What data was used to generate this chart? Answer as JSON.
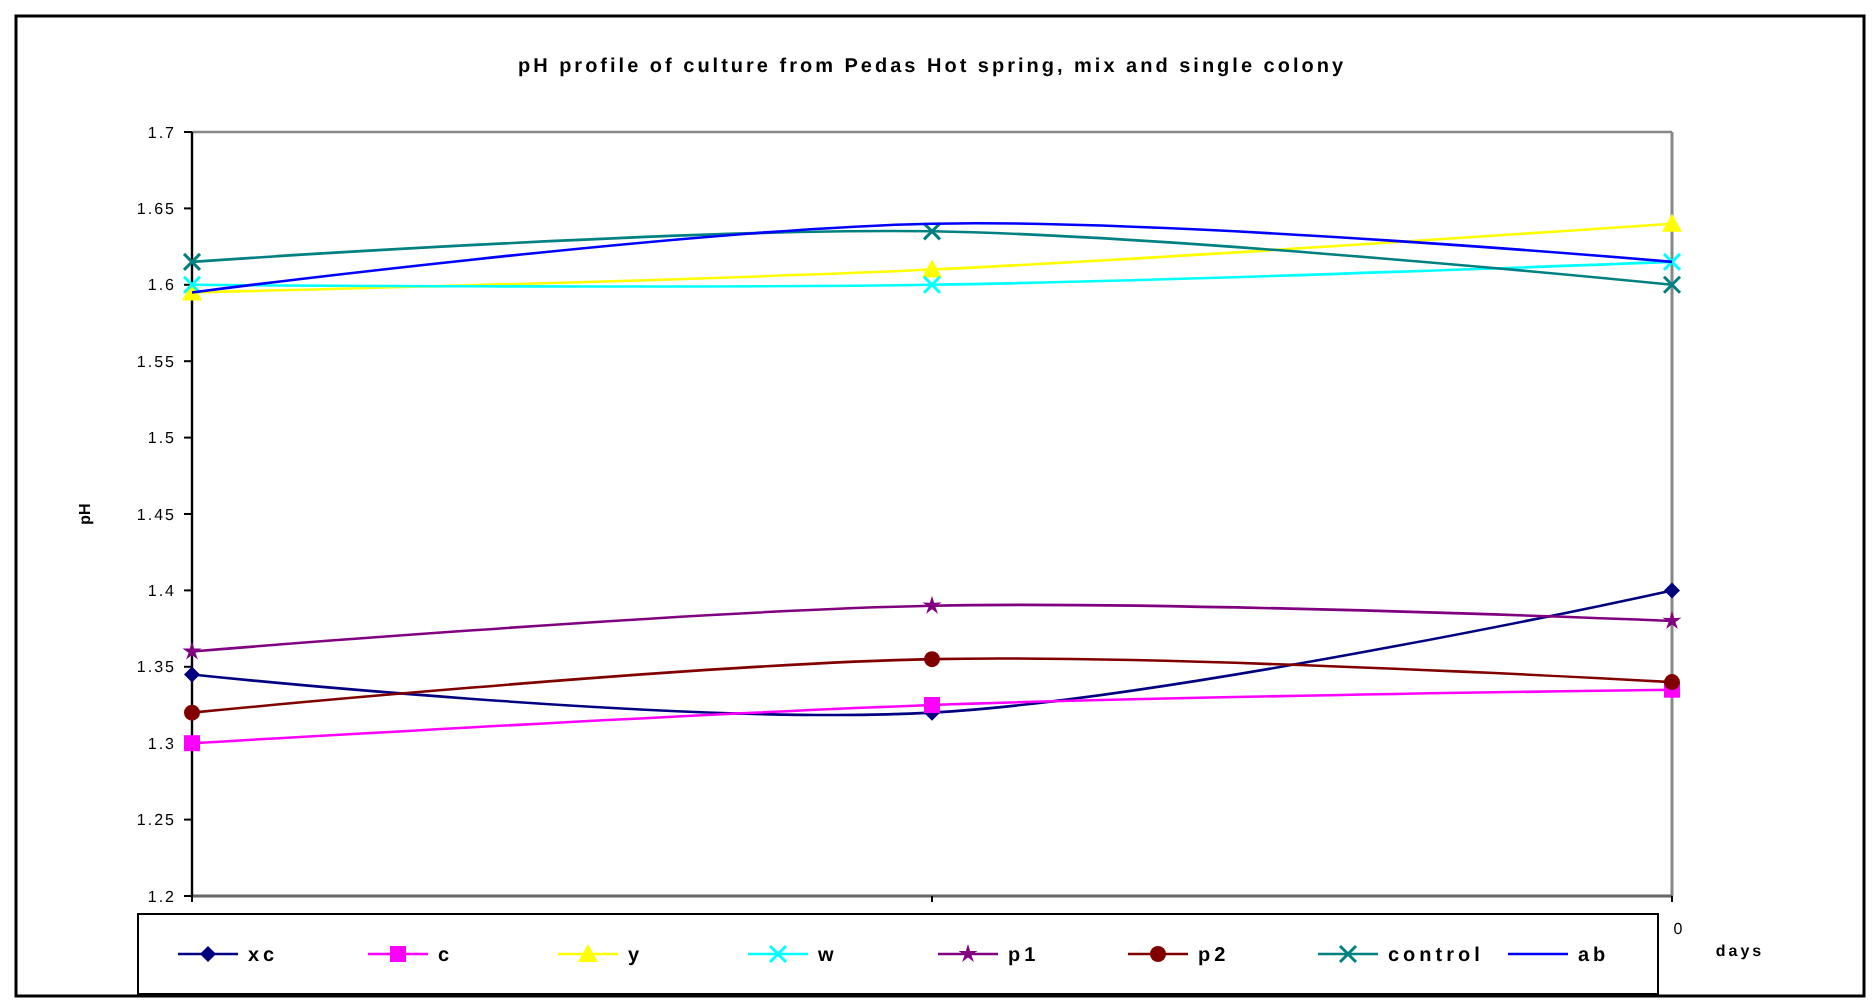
{
  "chart_data": {
    "type": "line",
    "title": "pH profile of culture from Pedas Hot spring, mix and single colony",
    "xlabel": "days",
    "ylabel": "pH",
    "categories": [
      null,
      null,
      "0"
    ],
    "ylim": [
      1.2,
      1.7
    ],
    "yticks": [
      1.2,
      1.25,
      1.3,
      1.35,
      1.4,
      1.45,
      1.5,
      1.55,
      1.6,
      1.65,
      1.7
    ],
    "grid": false,
    "legend": "bottom",
    "line_style": "solid",
    "series": [
      {
        "name": "xc",
        "color": "#000080",
        "marker": "diamond",
        "values": [
          1.345,
          1.32,
          1.4
        ]
      },
      {
        "name": "c",
        "color": "#ff00ff",
        "marker": "square",
        "values": [
          1.3,
          1.325,
          1.335
        ]
      },
      {
        "name": "y",
        "color": "#ffff00",
        "marker": "triangle",
        "values": [
          1.595,
          1.61,
          1.64
        ]
      },
      {
        "name": "w",
        "color": "#00ffff",
        "marker": "cross",
        "values": [
          1.6,
          1.6,
          1.615
        ]
      },
      {
        "name": "p1",
        "color": "#800080",
        "marker": "star",
        "values": [
          1.36,
          1.39,
          1.38
        ]
      },
      {
        "name": "p2",
        "color": "#800000",
        "marker": "circle",
        "values": [
          1.32,
          1.355,
          1.34
        ]
      },
      {
        "name": "control",
        "color": "#008080",
        "marker": "cross",
        "values": [
          1.615,
          1.635,
          1.6
        ]
      },
      {
        "name": "ab",
        "color": "#0000ff",
        "marker": "none",
        "values": [
          1.595,
          1.64,
          1.615
        ]
      }
    ]
  }
}
